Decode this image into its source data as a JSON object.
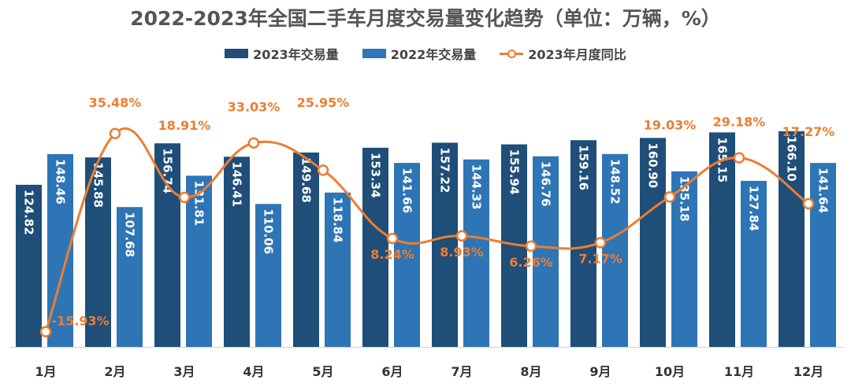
{
  "chart_data": {
    "type": "bar",
    "title": "2022-2023年全国二手车月度交易量变化趋势（单位：万辆，%）",
    "categories": [
      "1月",
      "2月",
      "3月",
      "4月",
      "5月",
      "6月",
      "7月",
      "8月",
      "9月",
      "10月",
      "11月",
      "12月"
    ],
    "series": [
      {
        "name": "2023年交易量",
        "type": "bar",
        "color": "#1f4e79",
        "values": [
          124.82,
          145.88,
          156.74,
          146.41,
          149.68,
          153.34,
          157.22,
          155.94,
          159.16,
          160.9,
          165.15,
          166.1
        ]
      },
      {
        "name": "2022年交易量",
        "type": "bar",
        "color": "#2e75b6",
        "values": [
          148.46,
          107.68,
          131.81,
          110.06,
          118.84,
          141.66,
          144.33,
          146.76,
          148.52,
          135.18,
          127.84,
          141.64
        ]
      },
      {
        "name": "2023年月度同比",
        "type": "line",
        "color": "#ed7d31",
        "values": [
          -15.93,
          35.48,
          18.91,
          33.03,
          25.95,
          8.24,
          8.93,
          6.26,
          7.17,
          19.03,
          29.18,
          17.27
        ]
      }
    ],
    "value_labels": {
      "bar2023": [
        "124.82",
        "145.88",
        "156.74",
        "146.41",
        "149.68",
        "153.34",
        "157.22",
        "155.94",
        "159.16",
        "160.90",
        "165.15",
        "166.10"
      ],
      "bar2022": [
        "148.46",
        "107.68",
        "131.81",
        "110.06",
        "118.84",
        "141.66",
        "144.33",
        "146.76",
        "148.52",
        "135.18",
        "127.84",
        "141.64"
      ],
      "yoy": [
        "-15.93%",
        "35.48%",
        "18.91%",
        "33.03%",
        "25.95%",
        "8.24%",
        "8.93%",
        "6.26%",
        "7.17%",
        "19.03%",
        "29.18%",
        "17.27%"
      ]
    },
    "legend_position": "top-center",
    "grid": false
  }
}
